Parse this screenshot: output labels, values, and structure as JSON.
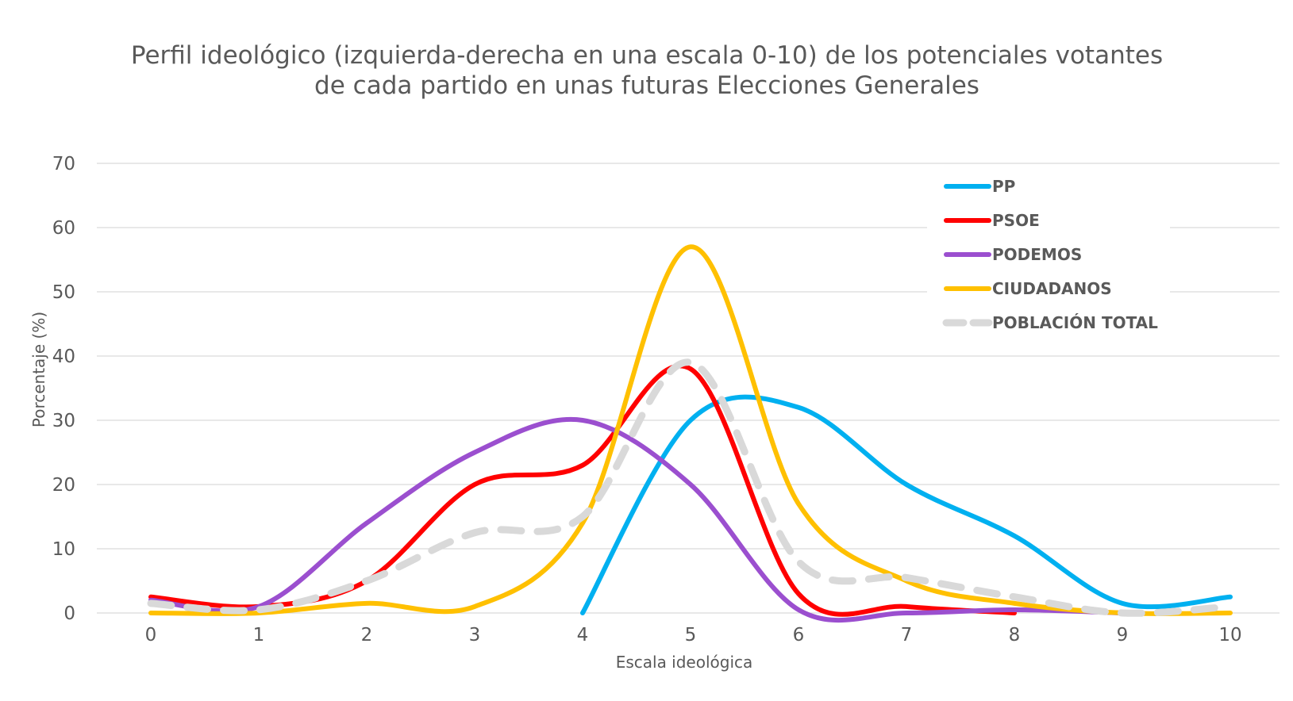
{
  "chart_data": {
    "type": "line",
    "title": [
      "Perfil ideológico (izquierda-derecha en una escala 0-10) de los potenciales votantes",
      "de cada partido en unas futuras Elecciones Generales"
    ],
    "xlabel": "Escala ideológica",
    "ylabel": "Porcentaje (%)",
    "x": [
      0,
      1,
      2,
      3,
      4,
      5,
      6,
      7,
      8,
      9,
      10
    ],
    "ylim": [
      0,
      70
    ],
    "yticks": [
      0,
      10,
      20,
      30,
      40,
      50,
      60,
      70
    ],
    "grid": true,
    "legend_position": "top-right",
    "series": [
      {
        "name": "PP",
        "color": "#00B0F0",
        "dashed": false,
        "x": [
          4,
          5,
          6,
          7,
          8,
          9,
          10
        ],
        "values": [
          0,
          30,
          32,
          20,
          12,
          1.5,
          2.5
        ]
      },
      {
        "name": "PSOE",
        "color": "#FF0000",
        "dashed": false,
        "x": [
          0,
          1,
          2,
          3,
          4,
          5,
          6,
          7,
          8
        ],
        "values": [
          2.5,
          1,
          5,
          20,
          23,
          38,
          3,
          1,
          0
        ]
      },
      {
        "name": "PODEMOS",
        "color": "#9B4FCF",
        "dashed": false,
        "x": [
          0,
          1,
          2,
          3,
          4,
          5,
          6,
          7,
          8,
          9
        ],
        "values": [
          2,
          1,
          14,
          25,
          30,
          20,
          0.5,
          0,
          0.5,
          0
        ]
      },
      {
        "name": "CIUDADANOS",
        "color": "#FFC000",
        "dashed": false,
        "x": [
          0,
          1,
          2,
          3,
          4,
          5,
          6,
          7,
          8,
          9,
          10
        ],
        "values": [
          0,
          0,
          1.5,
          1,
          14,
          57,
          17,
          5,
          1.5,
          0,
          0
        ]
      },
      {
        "name": "POBLACIÓN TOTAL",
        "color": "#D9D9D9",
        "dashed": true,
        "x": [
          0,
          1,
          2,
          3,
          4,
          5,
          6,
          7,
          8,
          9,
          10
        ],
        "values": [
          1.5,
          0.5,
          5,
          12.5,
          15,
          39,
          8,
          5.5,
          2.5,
          0,
          1
        ]
      }
    ]
  }
}
